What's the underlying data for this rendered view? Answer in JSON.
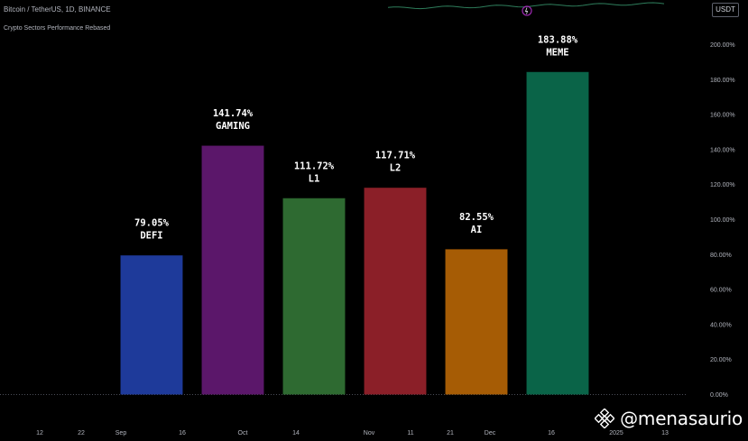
{
  "header": {
    "symbol_title": "Bitcoin / TetherUS, 1D, BINANCE",
    "currency": "USDT",
    "subtitle": "Crypto Sectors Performance Rebased"
  },
  "watermark": {
    "text": "@menasaurio",
    "icon": "binance-logo-icon"
  },
  "colors": {
    "background": "#000000",
    "axis_text": "#b2b5be",
    "label_text": "#ffffff"
  },
  "chart_data": {
    "type": "bar",
    "title": "Crypto Sectors Performance Rebased",
    "categories": [
      "DEFI",
      "GAMING",
      "L1",
      "L2",
      "AI",
      "MEME"
    ],
    "values": [
      79.05,
      141.74,
      111.72,
      117.71,
      82.55,
      183.88
    ],
    "value_labels": [
      "79.05%",
      "141.74%",
      "111.72%",
      "117.71%",
      "82.55%",
      "183.88%"
    ],
    "colors": [
      "#1e3a9a",
      "#5b176a",
      "#2e6a31",
      "#8b1f28",
      "#a65c05",
      "#0a6448"
    ],
    "ylim": [
      0,
      200
    ],
    "y_ticks": [
      "0.00%",
      "20.00%",
      "40.00%",
      "60.00%",
      "80.00%",
      "100.00%",
      "120.00%",
      "140.00%",
      "160.00%",
      "180.00%",
      "200.00%"
    ],
    "x_ticks": [
      "12",
      "22",
      "Sep",
      "16",
      "Oct",
      "14",
      "Nov",
      "11",
      "21",
      "Dec",
      "16",
      "2025",
      "13"
    ],
    "y_axis_position": "right",
    "grid": false
  }
}
